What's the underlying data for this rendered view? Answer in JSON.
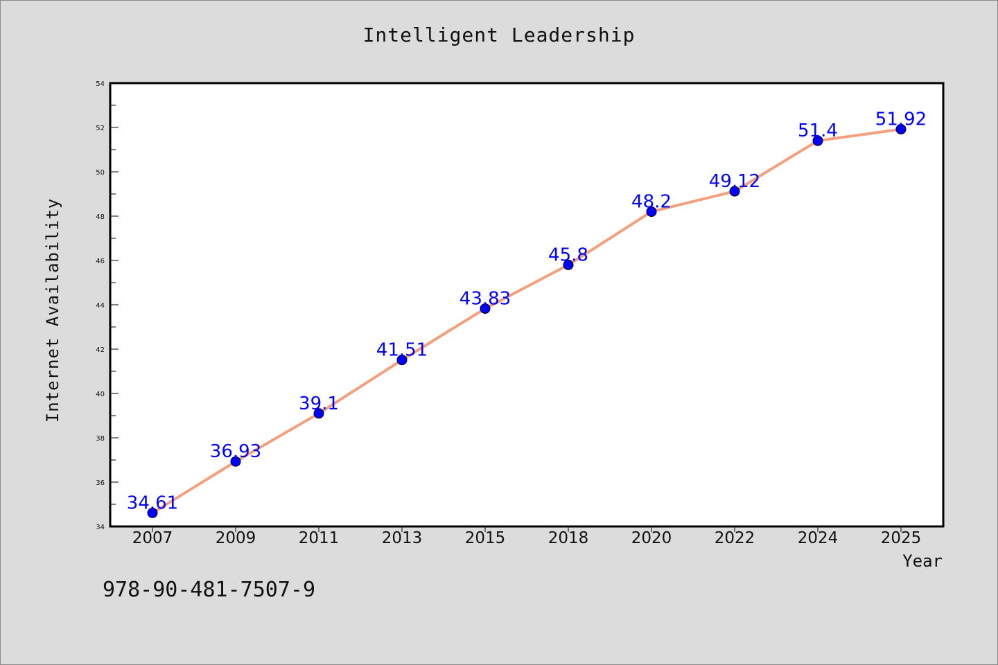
{
  "chart_data": {
    "type": "line",
    "title": "Intelligent Leadership",
    "xlabel": "Year",
    "ylabel": "Internet Availability",
    "categories": [
      "2007",
      "2009",
      "2011",
      "2013",
      "2015",
      "2018",
      "2020",
      "2022",
      "2024",
      "2025"
    ],
    "values": [
      34.61,
      36.93,
      39.1,
      41.51,
      43.83,
      45.8,
      48.2,
      49.12,
      51.4,
      51.92
    ],
    "data_labels": [
      "34.61",
      "36.93",
      "39.1",
      "41.51",
      "43.83",
      "45.8",
      "48.2",
      "49.12",
      "51.4",
      "51.92"
    ],
    "ylim": [
      34,
      54
    ],
    "yticks": [
      34,
      36,
      38,
      40,
      42,
      44,
      46,
      48,
      50,
      52,
      54
    ],
    "grid": false,
    "line_color": "#f4a07c",
    "marker_color": "#0000ff",
    "label_color": "#0000ff"
  },
  "footer": {
    "isbn": "978-90-481-7507-9"
  }
}
